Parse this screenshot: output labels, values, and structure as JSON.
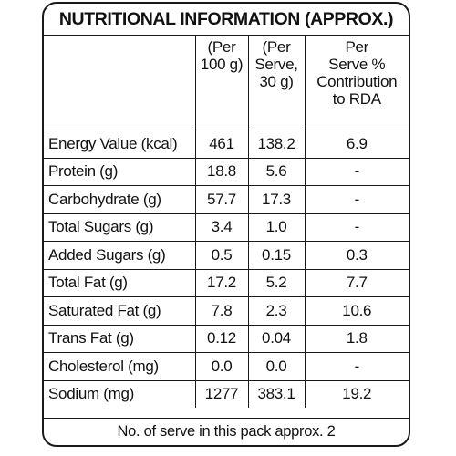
{
  "label": {
    "title": "NUTRITIONAL INFORMATION (APPROX.)",
    "columns": {
      "nutrient": "",
      "per_100g": [
        "(Per",
        "100 g)"
      ],
      "per_serve": [
        "(Per",
        "Serve,",
        "30 g)"
      ],
      "rda": [
        "Per",
        "Serve %",
        "Contribution",
        "to RDA"
      ]
    },
    "rows": [
      {
        "name": "Energy Value (kcal)",
        "per_100g": "461",
        "per_serve": "138.2",
        "rda": "6.9"
      },
      {
        "name": "Protein (g)",
        "per_100g": "18.8",
        "per_serve": "5.6",
        "rda": "-"
      },
      {
        "name": "Carbohydrate (g)",
        "per_100g": "57.7",
        "per_serve": "17.3",
        "rda": "-"
      },
      {
        "name": "Total Sugars (g)",
        "per_100g": "3.4",
        "per_serve": "1.0",
        "rda": "-"
      },
      {
        "name": "Added Sugars (g)",
        "per_100g": "0.5",
        "per_serve": "0.15",
        "rda": "0.3"
      },
      {
        "name": "Total Fat (g)",
        "per_100g": "17.2",
        "per_serve": "5.2",
        "rda": "7.7"
      },
      {
        "name": "Saturated Fat (g)",
        "per_100g": "7.8",
        "per_serve": "2.3",
        "rda": "10.6"
      },
      {
        "name": "Trans Fat (g)",
        "per_100g": "0.12",
        "per_serve": "0.04",
        "rda": "1.8"
      },
      {
        "name": "Cholesterol (mg)",
        "per_100g": "0.0",
        "per_serve": "0.0",
        "rda": "-"
      },
      {
        "name": "Sodium (mg)",
        "per_100g": "1277",
        "per_serve": "383.1",
        "rda": "19.2"
      }
    ],
    "footer": "No. of serve in this pack approx. 2"
  }
}
